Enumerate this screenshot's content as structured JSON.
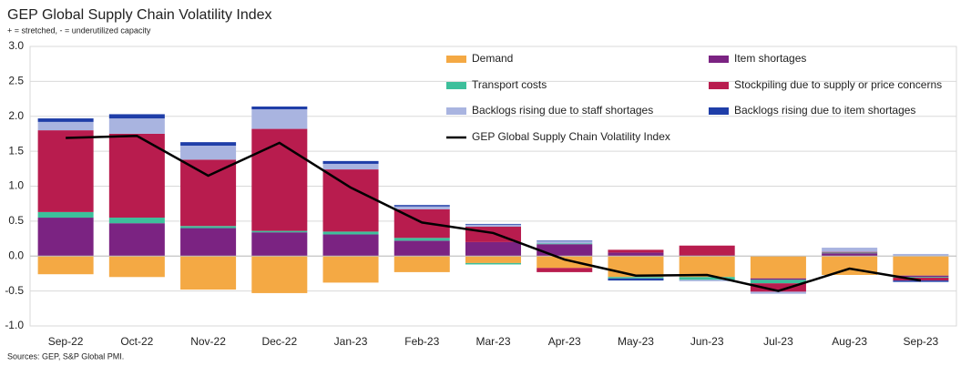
{
  "chart_data": {
    "type": "bar",
    "stacked": true,
    "title": "GEP Global Supply Chain Volatility Index",
    "subtitle": "+ = stretched, - = underutilized capacity",
    "source": "Sources: GEP, S&P Global PMI.",
    "categories": [
      "Sep-22",
      "Oct-22",
      "Nov-22",
      "Dec-22",
      "Jan-23",
      "Feb-23",
      "Mar-23",
      "Apr-23",
      "May-23",
      "Jun-23",
      "Jul-23",
      "Aug-23",
      "Sep-23"
    ],
    "series": [
      {
        "name": "Demand",
        "color": "#f4a944",
        "values": [
          -0.26,
          -0.3,
          -0.48,
          -0.53,
          -0.38,
          -0.23,
          -0.1,
          -0.17,
          -0.3,
          -0.3,
          -0.32,
          -0.27,
          -0.28
        ]
      },
      {
        "name": "Item shortages",
        "color": "#7b2382",
        "values": [
          0.55,
          0.47,
          0.4,
          0.34,
          0.31,
          0.22,
          0.2,
          0.17,
          0.05,
          0.01,
          -0.02,
          0.04,
          -0.02
        ]
      },
      {
        "name": "Transport costs",
        "color": "#3dbf9b",
        "values": [
          0.08,
          0.08,
          0.03,
          0.02,
          0.04,
          0.04,
          -0.02,
          0.01,
          -0.02,
          -0.04,
          -0.05,
          0.01,
          -0.01
        ]
      },
      {
        "name": "Stockpiling due to supply or price concerns",
        "color": "#b81c4e",
        "values": [
          1.17,
          1.2,
          0.95,
          1.46,
          0.89,
          0.41,
          0.22,
          -0.06,
          0.04,
          0.14,
          -0.12,
          0.01,
          -0.04
        ]
      },
      {
        "name": "Backlogs rising due to staff shortages",
        "color": "#a9b4e0",
        "values": [
          0.12,
          0.22,
          0.2,
          0.28,
          0.08,
          0.04,
          0.03,
          0.03,
          0.0,
          -0.02,
          -0.03,
          0.06,
          0.03
        ]
      },
      {
        "name": "Backlogs rising due to item shortages",
        "color": "#1f3ea8",
        "values": [
          0.05,
          0.06,
          0.05,
          0.04,
          0.04,
          0.02,
          0.01,
          0.01,
          -0.03,
          0.0,
          0.0,
          0.0,
          -0.02
        ]
      }
    ],
    "line": {
      "name": "GEP Global Supply Chain Volatility Index",
      "color": "#000000",
      "values": [
        1.69,
        1.72,
        1.15,
        1.62,
        0.98,
        0.48,
        0.33,
        -0.05,
        -0.28,
        -0.27,
        -0.5,
        -0.18,
        -0.35
      ]
    },
    "ylim": [
      -1.0,
      3.0
    ],
    "yticks": [
      {
        "value": -1.0,
        "label": "-1.0"
      },
      {
        "value": -0.5,
        "label": "-0.5"
      },
      {
        "value": 0.0,
        "label": "0.0"
      },
      {
        "value": 0.5,
        "label": "0.5"
      },
      {
        "value": 1.0,
        "label": "1.0"
      },
      {
        "value": 1.5,
        "label": "1.5"
      },
      {
        "value": 2.0,
        "label": "2.0"
      },
      {
        "value": 2.5,
        "label": "2.5"
      },
      {
        "value": 3.0,
        "label": "3.0"
      }
    ],
    "grid": true
  }
}
